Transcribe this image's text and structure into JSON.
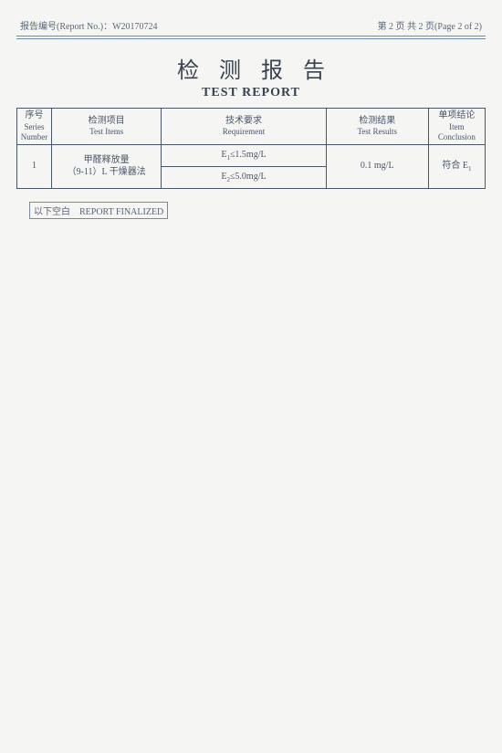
{
  "header": {
    "report_no_label_cn": "报告编号(Report No.)：",
    "report_no_value": "W20170724",
    "page_info": "第 2 页 共 2 页(Page 2 of 2)"
  },
  "title": {
    "cn": "检测报告",
    "en": "TEST REPORT"
  },
  "columns": {
    "num_cn": "序号",
    "num_en": "Series Number",
    "item_cn": "检测项目",
    "item_en": "Test Items",
    "req_cn": "技术要求",
    "req_en": "Requirement",
    "res_cn": "检测结果",
    "res_en": "Test Results",
    "conc_cn": "单项结论",
    "conc_en": "Item Conclusion"
  },
  "rows": {
    "r1": {
      "num": "1",
      "item_cn": "甲醛释放量",
      "item_sub": "（9-11）L 干燥器法",
      "req1_a": "E",
      "req1_b": "1",
      "req1_c": "≤1.5mg/L",
      "req2_a": "E",
      "req2_b": "2",
      "req2_c": "≤5.0mg/L",
      "result": "0.1 mg/L",
      "conc_a": "符合 E",
      "conc_b": "1"
    }
  },
  "footer": {
    "cn": "以下空白",
    "en": "REPORT FINALIZED"
  },
  "style": {
    "border_color": "#4a5568",
    "rule_color": "#6b8ba8",
    "text_color": "#4a5568",
    "bg_color": "#f5f5f3"
  }
}
